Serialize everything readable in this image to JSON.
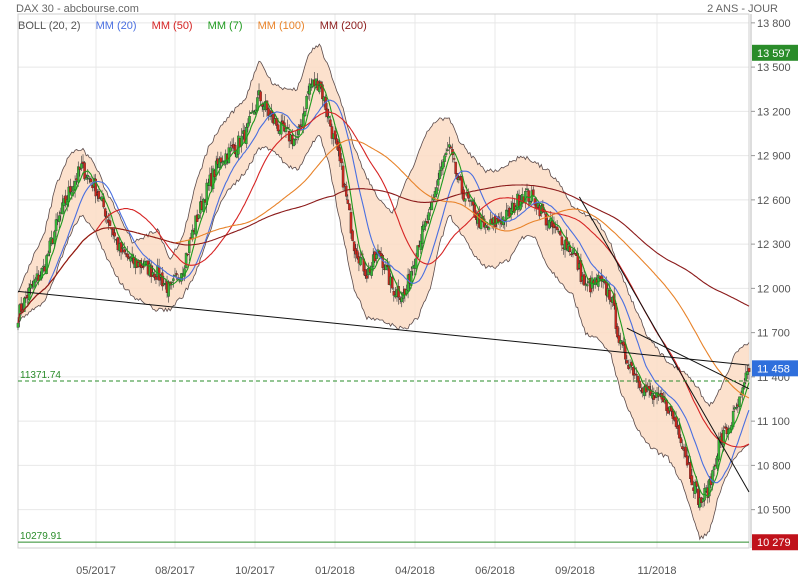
{
  "header": {
    "title": "DAX 30 - abcbourse.com",
    "period": "2 ANS - JOUR"
  },
  "legend": [
    {
      "label": "BOLL (20, 2)",
      "color": "#555555"
    },
    {
      "label": "MM (20)",
      "color": "#4a6fe0"
    },
    {
      "label": "MM (50)",
      "color": "#d62424"
    },
    {
      "label": "MM (7)",
      "color": "#1e9a1e"
    },
    {
      "label": "MM (100)",
      "color": "#e8832a"
    },
    {
      "label": "MM (200)",
      "color": "#8b1a1a"
    }
  ],
  "colors": {
    "up": "#36b636",
    "down": "#c8281e",
    "band_fill": "#fbdcc4",
    "band_line": "#5a4a4a",
    "grid": "#e8e8e8",
    "price_badge": "#2f6fdc",
    "high_badge": "#2a8c2a",
    "low_badge": "#c0121b",
    "ref_high": "#2a8c2a",
    "ref_low": "#2a8c2a"
  },
  "chart_data": {
    "type": "candlestick",
    "title": "DAX 30",
    "x_tick_labels": [
      "05/2017",
      "08/2017",
      "10/2017",
      "01/2018",
      "04/2018",
      "06/2018",
      "09/2018",
      "11/2018"
    ],
    "y_ticks": [
      10500,
      10800,
      11100,
      11400,
      11700,
      12000,
      12300,
      12600,
      12900,
      13200,
      13500,
      13800
    ],
    "y_tick_labels": [
      "10 500",
      "10 800",
      "11 100",
      "11 400",
      "11 700",
      "12 000",
      "12 300",
      "12 600",
      "12 900",
      "13 200",
      "13 500",
      "13 800"
    ],
    "ylim": [
      10240,
      13860
    ],
    "price_levels": [
      {
        "value": 11458,
        "label": "11 458",
        "kind": "last"
      },
      {
        "value": 13597,
        "label": "13 597",
        "kind": "high"
      },
      {
        "value": 10279,
        "label": "10 279",
        "kind": "low"
      }
    ],
    "reference_lines": [
      {
        "value": 11371.74,
        "label": "11371.74",
        "style": "dashed"
      },
      {
        "value": 10279.91,
        "label": "10279.91",
        "style": "solid"
      }
    ],
    "close_anchors": [
      [
        0,
        11820
      ],
      [
        8,
        12000
      ],
      [
        16,
        12130
      ],
      [
        24,
        12420
      ],
      [
        32,
        12650
      ],
      [
        40,
        12820
      ],
      [
        48,
        12700
      ],
      [
        56,
        12500
      ],
      [
        64,
        12260
      ],
      [
        72,
        12180
      ],
      [
        80,
        12150
      ],
      [
        88,
        12100
      ],
      [
        96,
        11980
      ],
      [
        104,
        12150
      ],
      [
        112,
        12450
      ],
      [
        120,
        12700
      ],
      [
        128,
        12880
      ],
      [
        136,
        12950
      ],
      [
        144,
        13050
      ],
      [
        152,
        13300
      ],
      [
        160,
        13150
      ],
      [
        168,
        13050
      ],
      [
        176,
        13000
      ],
      [
        184,
        13380
      ],
      [
        190,
        13400
      ],
      [
        196,
        13150
      ],
      [
        204,
        12800
      ],
      [
        212,
        12300
      ],
      [
        220,
        12100
      ],
      [
        228,
        12250
      ],
      [
        236,
        12000
      ],
      [
        244,
        11950
      ],
      [
        252,
        12300
      ],
      [
        260,
        12500
      ],
      [
        266,
        12800
      ],
      [
        272,
        12950
      ],
      [
        278,
        12700
      ],
      [
        286,
        12550
      ],
      [
        294,
        12400
      ],
      [
        302,
        12450
      ],
      [
        310,
        12500
      ],
      [
        318,
        12650
      ],
      [
        326,
        12600
      ],
      [
        334,
        12450
      ],
      [
        342,
        12350
      ],
      [
        350,
        12250
      ],
      [
        358,
        12000
      ],
      [
        366,
        12050
      ],
      [
        374,
        11950
      ],
      [
        380,
        11600
      ],
      [
        388,
        11450
      ],
      [
        396,
        11300
      ],
      [
        402,
        11250
      ],
      [
        410,
        11200
      ],
      [
        418,
        11000
      ],
      [
        424,
        10750
      ],
      [
        430,
        10550
      ],
      [
        436,
        10650
      ],
      [
        442,
        10950
      ],
      [
        448,
        11050
      ],
      [
        452,
        11150
      ],
      [
        456,
        11250
      ],
      [
        461,
        11458
      ]
    ],
    "bollinger_upper": [
      [
        0,
        11960
      ],
      [
        8,
        12180
      ],
      [
        16,
        12350
      ],
      [
        24,
        12700
      ],
      [
        32,
        12900
      ],
      [
        40,
        12950
      ],
      [
        48,
        12850
      ],
      [
        56,
        12650
      ],
      [
        64,
        12500
      ],
      [
        72,
        12320
      ],
      [
        80,
        12350
      ],
      [
        88,
        12400
      ],
      [
        96,
        12200
      ],
      [
        104,
        12350
      ],
      [
        112,
        12700
      ],
      [
        120,
        12950
      ],
      [
        128,
        13100
      ],
      [
        136,
        13200
      ],
      [
        144,
        13300
      ],
      [
        152,
        13550
      ],
      [
        160,
        13400
      ],
      [
        168,
        13350
      ],
      [
        176,
        13350
      ],
      [
        184,
        13600
      ],
      [
        190,
        13650
      ],
      [
        196,
        13500
      ],
      [
        204,
        13250
      ],
      [
        212,
        12950
      ],
      [
        220,
        12750
      ],
      [
        228,
        12600
      ],
      [
        236,
        12500
      ],
      [
        244,
        12700
      ],
      [
        252,
        12900
      ],
      [
        260,
        13100
      ],
      [
        266,
        13150
      ],
      [
        272,
        13150
      ],
      [
        278,
        13000
      ],
      [
        286,
        12900
      ],
      [
        294,
        12800
      ],
      [
        302,
        12800
      ],
      [
        310,
        12850
      ],
      [
        318,
        12900
      ],
      [
        326,
        12850
      ],
      [
        334,
        12800
      ],
      [
        342,
        12700
      ],
      [
        350,
        12550
      ],
      [
        358,
        12500
      ],
      [
        366,
        12450
      ],
      [
        374,
        12300
      ],
      [
        380,
        12100
      ],
      [
        388,
        11900
      ],
      [
        396,
        11700
      ],
      [
        402,
        11600
      ],
      [
        410,
        11500
      ],
      [
        418,
        11450
      ],
      [
        424,
        11400
      ],
      [
        430,
        11300
      ],
      [
        436,
        11200
      ],
      [
        442,
        11300
      ],
      [
        448,
        11450
      ],
      [
        452,
        11550
      ],
      [
        456,
        11600
      ],
      [
        461,
        11620
      ]
    ],
    "bollinger_lower": [
      [
        0,
        11780
      ],
      [
        8,
        11840
      ],
      [
        16,
        11900
      ],
      [
        24,
        12100
      ],
      [
        32,
        12350
      ],
      [
        40,
        12500
      ],
      [
        48,
        12400
      ],
      [
        56,
        12200
      ],
      [
        64,
        12050
      ],
      [
        72,
        11950
      ],
      [
        80,
        11900
      ],
      [
        88,
        11850
      ],
      [
        96,
        11860
      ],
      [
        104,
        11950
      ],
      [
        112,
        12100
      ],
      [
        120,
        12350
      ],
      [
        128,
        12600
      ],
      [
        136,
        12700
      ],
      [
        144,
        12800
      ],
      [
        152,
        12950
      ],
      [
        160,
        12950
      ],
      [
        168,
        12850
      ],
      [
        176,
        12800
      ],
      [
        184,
        12950
      ],
      [
        190,
        13050
      ],
      [
        196,
        12850
      ],
      [
        204,
        12400
      ],
      [
        212,
        12000
      ],
      [
        220,
        11800
      ],
      [
        228,
        11780
      ],
      [
        236,
        11750
      ],
      [
        244,
        11720
      ],
      [
        252,
        11800
      ],
      [
        260,
        12000
      ],
      [
        266,
        12300
      ],
      [
        272,
        12500
      ],
      [
        278,
        12400
      ],
      [
        286,
        12250
      ],
      [
        294,
        12150
      ],
      [
        302,
        12150
      ],
      [
        310,
        12200
      ],
      [
        318,
        12350
      ],
      [
        326,
        12350
      ],
      [
        334,
        12150
      ],
      [
        342,
        12050
      ],
      [
        350,
        11950
      ],
      [
        358,
        11700
      ],
      [
        366,
        11650
      ],
      [
        374,
        11550
      ],
      [
        380,
        11300
      ],
      [
        388,
        11100
      ],
      [
        396,
        10950
      ],
      [
        402,
        10900
      ],
      [
        410,
        10850
      ],
      [
        418,
        10700
      ],
      [
        424,
        10500
      ],
      [
        430,
        10300
      ],
      [
        436,
        10350
      ],
      [
        442,
        10600
      ],
      [
        448,
        10750
      ],
      [
        452,
        10850
      ],
      [
        456,
        10900
      ],
      [
        461,
        10950
      ]
    ],
    "ma_periods": [
      7,
      20,
      50,
      100,
      200
    ],
    "trend_lines": [
      {
        "from": [
          0,
          11980
        ],
        "to": [
          461,
          11480
        ]
      },
      {
        "from": [
          354,
          12620
        ],
        "to": [
          461,
          10620
        ]
      },
      {
        "from": [
          384,
          11730
        ],
        "to": [
          461,
          11320
        ]
      }
    ],
    "grid": true
  }
}
